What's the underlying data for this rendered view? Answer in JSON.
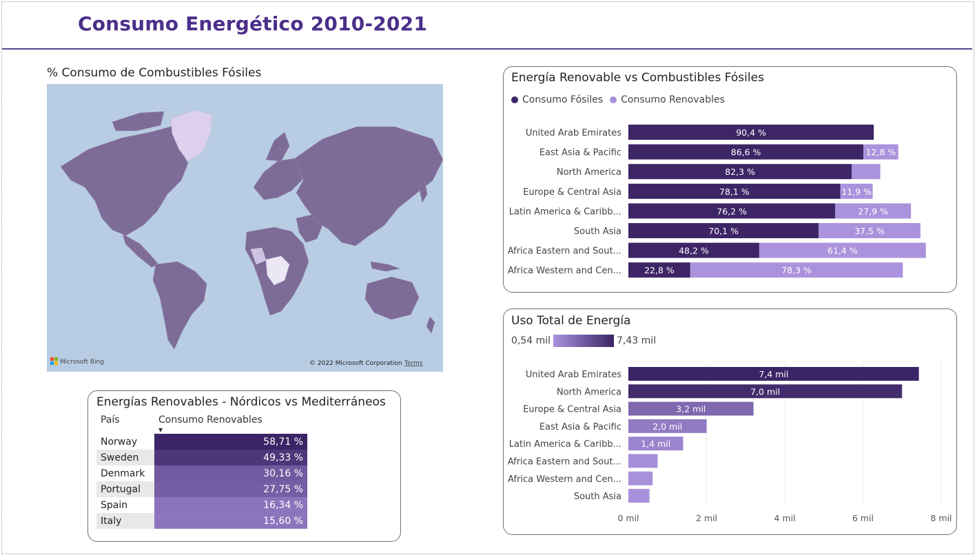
{
  "page": {
    "title": "Consumo Energético 2010-2021"
  },
  "map_panel": {
    "title": "% Consumo de Combustibles Fósiles",
    "attribution": "© 2022 Microsoft Corporation",
    "terms": "Terms",
    "logo_text": "Microsoft Bing",
    "land_color": "#7d6b98",
    "ocean_color": "#b8cde3"
  },
  "table_panel": {
    "title": "Energías Renovables - Nórdicos vs Mediterráneos",
    "col_country": "País",
    "col_value": "Consumo Renovables",
    "rows": [
      {
        "country": "Norway",
        "value": "58,71 %",
        "raw": 58.71
      },
      {
        "country": "Sweden",
        "value": "49,33 %",
        "raw": 49.33
      },
      {
        "country": "Denmark",
        "value": "30,16 %",
        "raw": 30.16
      },
      {
        "country": "Portugal",
        "value": "27,75 %",
        "raw": 27.75
      },
      {
        "country": "Spain",
        "value": "16,34 %",
        "raw": 16.34
      },
      {
        "country": "Italy",
        "value": "15,60 %",
        "raw": 15.6
      }
    ]
  },
  "chart_data": [
    {
      "type": "bar",
      "orientation": "horizontal",
      "stacked": true,
      "title": "Energía Renovable vs Combustibles Fósiles",
      "legend_position": "top-left",
      "categories": [
        "United Arab Emirates",
        "East Asia & Pacific",
        "North America",
        "Europe & Central Asia",
        "Latin America & Caribb...",
        "South Asia",
        "Africa Eastern and Sout...",
        "Africa Western and Cen..."
      ],
      "series": [
        {
          "name": "Consumo Fósiles",
          "color": "#3d2566",
          "values": [
            90.4,
            86.6,
            82.3,
            78.1,
            76.2,
            70.1,
            48.2,
            22.8
          ],
          "labels": [
            "90,4 %",
            "86,6 %",
            "82,3 %",
            "78,1 %",
            "76,2 %",
            "70,1 %",
            "48,2 %",
            "22,8 %"
          ]
        },
        {
          "name": "Consumo Renovables",
          "color": "#ab92dc",
          "values": [
            0,
            12.8,
            10.5,
            11.9,
            27.9,
            37.5,
            61.4,
            78.3
          ],
          "labels": [
            "",
            "12,8 %",
            "",
            "11,9 %",
            "27,9 %",
            "37,5 %",
            "61,4 %",
            "78,3 %"
          ]
        }
      ]
    },
    {
      "type": "bar",
      "orientation": "horizontal",
      "title": "Uso Total de Energía",
      "legend_min": "0,54 mil",
      "legend_max": "7,43 mil",
      "categories": [
        "United Arab Emirates",
        "North America",
        "Europe & Central Asia",
        "East Asia & Pacific",
        "Latin America & Caribb...",
        "Africa Eastern and Sout...",
        "Africa Western and Cen...",
        "South Asia"
      ],
      "values": [
        7.43,
        7.0,
        3.2,
        2.0,
        1.4,
        0.75,
        0.62,
        0.54
      ],
      "labels": [
        "7,4 mil",
        "7,0 mil",
        "3,2 mil",
        "2,0 mil",
        "1,4 mil",
        "",
        "",
        ""
      ],
      "xlim": [
        0,
        8
      ],
      "xticks": [
        0,
        2,
        4,
        6,
        8
      ],
      "xtick_labels": [
        "0 mil",
        "2 mil",
        "4 mil",
        "6 mil",
        "8 mil"
      ],
      "grid": true
    }
  ]
}
